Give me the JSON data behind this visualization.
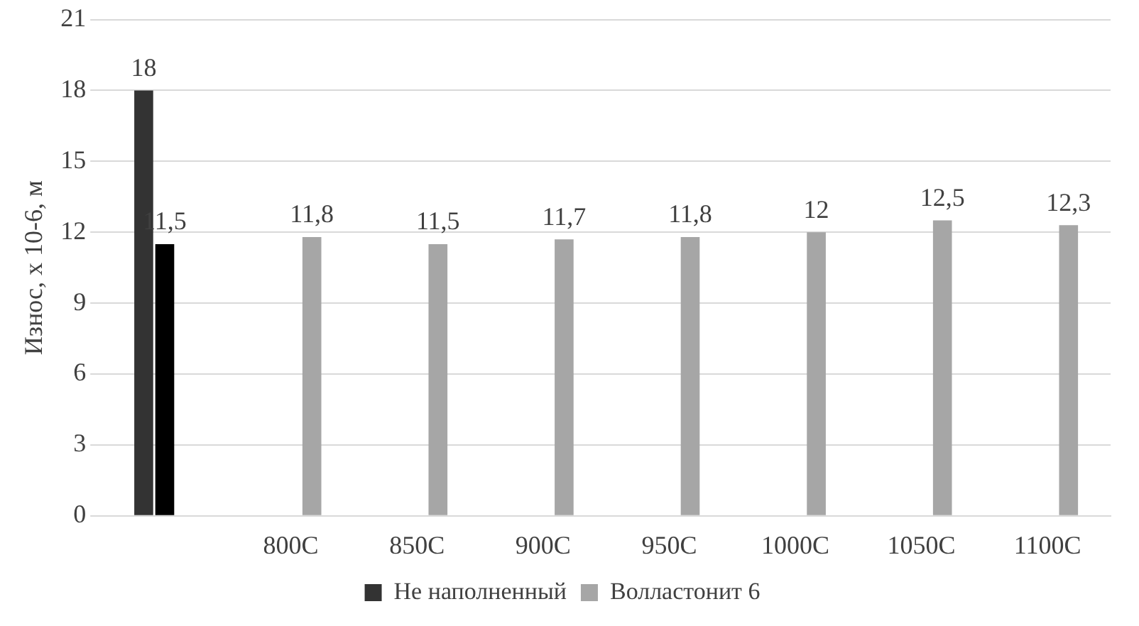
{
  "chart_data": {
    "type": "bar",
    "ylabel": "Износ, х 10-6, м",
    "categories": [
      null,
      "800C",
      "850C",
      "900C",
      "950C",
      "1000C",
      "1050C",
      "1100C"
    ],
    "series": [
      {
        "name": "Не наполненный",
        "color": "#333333",
        "values": [
          18,
          null,
          null,
          null,
          null,
          null,
          null,
          null
        ],
        "value_labels": [
          "18",
          null,
          null,
          null,
          null,
          null,
          null,
          null
        ]
      },
      {
        "color": "#000000",
        "values": [
          11.5,
          null,
          null,
          null,
          null,
          null,
          null,
          null
        ],
        "value_labels": [
          "11,5",
          null,
          null,
          null,
          null,
          null,
          null,
          null
        ]
      },
      {
        "name": "Волластонит 6",
        "color": "#a6a6a6",
        "values": [
          null,
          11.8,
          11.5,
          11.7,
          11.8,
          12,
          12.5,
          12.3
        ],
        "value_labels": [
          null,
          "11,8",
          "11,5",
          "11,7",
          "11,8",
          "12",
          "12,5",
          "12,3"
        ]
      }
    ],
    "ylim": [
      0,
      21
    ],
    "yticks": [
      0,
      3,
      6,
      9,
      12,
      15,
      18,
      21
    ],
    "grid": "y",
    "legend": "bottom"
  }
}
